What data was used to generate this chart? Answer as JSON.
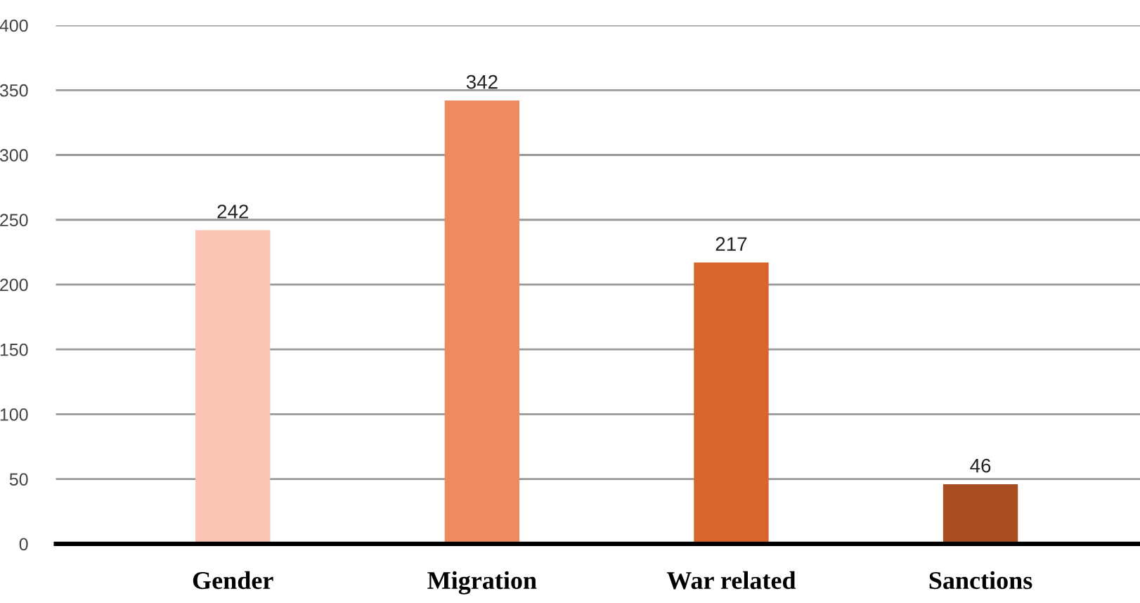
{
  "chart_data": {
    "type": "bar",
    "categories": [
      "Gender",
      "Migration",
      "War related",
      "Sanctions"
    ],
    "values": [
      242,
      342,
      217,
      46
    ],
    "colors": [
      "#f9c4b4",
      "#ee8a5f",
      "#d8652c",
      "#a94e22"
    ],
    "ylim": [
      0,
      400
    ],
    "yticks": [
      0,
      50,
      100,
      150,
      200,
      250,
      300,
      350,
      400
    ],
    "grid": "y",
    "data_labels": true
  }
}
